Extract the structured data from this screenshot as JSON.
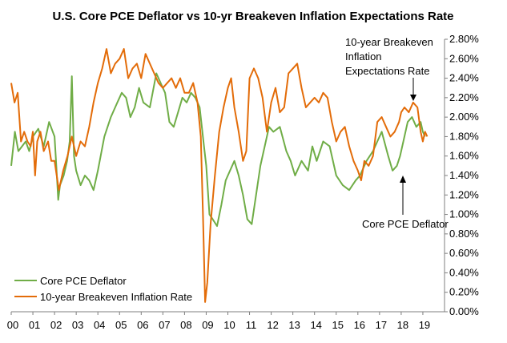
{
  "chart_data": {
    "type": "line",
    "title": "U.S. Core PCE Deflator vs 10-yr Breakeven Inflation Expectations Rate",
    "xlabel": "",
    "ylabel": "",
    "x_tick_labels": [
      "00",
      "01",
      "02",
      "03",
      "04",
      "05",
      "06",
      "07",
      "08",
      "09",
      "10",
      "11",
      "12",
      "13",
      "14",
      "15",
      "16",
      "17",
      "18",
      "19"
    ],
    "y_tick_labels": [
      "0.00%",
      "0.20%",
      "0.40%",
      "0.60%",
      "0.80%",
      "1.00%",
      "1.20%",
      "1.40%",
      "1.60%",
      "1.80%",
      "2.00%",
      "2.20%",
      "2.40%",
      "2.60%",
      "2.80%"
    ],
    "xlim": [
      2000.0,
      2020.0
    ],
    "ylim": [
      0,
      2.8
    ],
    "grid": false,
    "legend_position": "bottom-left",
    "series": [
      {
        "name": "Core PCE Deflator",
        "color": "#70AD47",
        "values": [
          [
            2000.0,
            1.5
          ],
          [
            2000.17,
            1.85
          ],
          [
            2000.33,
            1.65
          ],
          [
            2000.5,
            1.7
          ],
          [
            2000.67,
            1.75
          ],
          [
            2000.83,
            1.65
          ],
          [
            2001.0,
            1.8
          ],
          [
            2001.25,
            1.88
          ],
          [
            2001.5,
            1.7
          ],
          [
            2001.75,
            1.95
          ],
          [
            2002.0,
            1.8
          ],
          [
            2002.08,
            1.5
          ],
          [
            2002.17,
            1.15
          ],
          [
            2002.25,
            1.3
          ],
          [
            2002.42,
            1.4
          ],
          [
            2002.58,
            1.55
          ],
          [
            2002.7,
            1.75
          ],
          [
            2002.8,
            2.42
          ],
          [
            2002.9,
            1.6
          ],
          [
            2003.0,
            1.45
          ],
          [
            2003.2,
            1.3
          ],
          [
            2003.4,
            1.4
          ],
          [
            2003.6,
            1.35
          ],
          [
            2003.8,
            1.25
          ],
          [
            2004.0,
            1.45
          ],
          [
            2004.3,
            1.8
          ],
          [
            2004.6,
            2.0
          ],
          [
            2004.9,
            2.15
          ],
          [
            2005.1,
            2.25
          ],
          [
            2005.3,
            2.2
          ],
          [
            2005.5,
            2.0
          ],
          [
            2005.7,
            2.1
          ],
          [
            2005.9,
            2.3
          ],
          [
            2006.1,
            2.15
          ],
          [
            2006.4,
            2.1
          ],
          [
            2006.7,
            2.45
          ],
          [
            2006.9,
            2.35
          ],
          [
            2007.1,
            2.25
          ],
          [
            2007.3,
            1.95
          ],
          [
            2007.5,
            1.9
          ],
          [
            2007.7,
            2.05
          ],
          [
            2007.9,
            2.2
          ],
          [
            2008.1,
            2.15
          ],
          [
            2008.3,
            2.25
          ],
          [
            2008.5,
            2.2
          ],
          [
            2008.7,
            2.1
          ],
          [
            2008.9,
            1.7
          ],
          [
            2009.0,
            1.5
          ],
          [
            2009.15,
            1.0
          ],
          [
            2009.3,
            0.95
          ],
          [
            2009.5,
            0.88
          ],
          [
            2009.7,
            1.1
          ],
          [
            2009.9,
            1.35
          ],
          [
            2010.1,
            1.45
          ],
          [
            2010.3,
            1.55
          ],
          [
            2010.5,
            1.4
          ],
          [
            2010.7,
            1.2
          ],
          [
            2010.9,
            0.95
          ],
          [
            2011.1,
            0.9
          ],
          [
            2011.3,
            1.2
          ],
          [
            2011.5,
            1.5
          ],
          [
            2011.7,
            1.7
          ],
          [
            2011.9,
            1.9
          ],
          [
            2012.1,
            1.85
          ],
          [
            2012.4,
            1.9
          ],
          [
            2012.7,
            1.65
          ],
          [
            2012.9,
            1.55
          ],
          [
            2013.1,
            1.4
          ],
          [
            2013.4,
            1.55
          ],
          [
            2013.7,
            1.45
          ],
          [
            2013.9,
            1.7
          ],
          [
            2014.1,
            1.55
          ],
          [
            2014.4,
            1.75
          ],
          [
            2014.7,
            1.7
          ],
          [
            2015.0,
            1.4
          ],
          [
            2015.3,
            1.3
          ],
          [
            2015.6,
            1.25
          ],
          [
            2015.9,
            1.35
          ],
          [
            2016.1,
            1.4
          ],
          [
            2016.4,
            1.55
          ],
          [
            2016.7,
            1.65
          ],
          [
            2016.9,
            1.75
          ],
          [
            2017.1,
            1.85
          ],
          [
            2017.4,
            1.6
          ],
          [
            2017.6,
            1.45
          ],
          [
            2017.8,
            1.5
          ],
          [
            2017.95,
            1.6
          ],
          [
            2018.1,
            1.75
          ],
          [
            2018.3,
            1.95
          ],
          [
            2018.5,
            2.0
          ],
          [
            2018.7,
            1.9
          ],
          [
            2018.9,
            1.95
          ],
          [
            2019.0,
            1.85
          ],
          [
            2019.1,
            1.8
          ]
        ]
      },
      {
        "name": "10-year Breakeven Inflation Rate",
        "color": "#E36C09",
        "values": [
          [
            2000.0,
            2.35
          ],
          [
            2000.15,
            2.15
          ],
          [
            2000.3,
            2.25
          ],
          [
            2000.45,
            1.75
          ],
          [
            2000.6,
            1.85
          ],
          [
            2000.75,
            1.75
          ],
          [
            2000.9,
            1.7
          ],
          [
            2001.0,
            1.85
          ],
          [
            2001.1,
            1.4
          ],
          [
            2001.2,
            1.75
          ],
          [
            2001.35,
            1.85
          ],
          [
            2001.5,
            1.65
          ],
          [
            2001.7,
            1.75
          ],
          [
            2001.85,
            1.55
          ],
          [
            2002.0,
            1.55
          ],
          [
            2002.2,
            1.25
          ],
          [
            2002.4,
            1.45
          ],
          [
            2002.6,
            1.6
          ],
          [
            2002.8,
            1.8
          ],
          [
            2003.0,
            1.6
          ],
          [
            2003.2,
            1.75
          ],
          [
            2003.4,
            1.7
          ],
          [
            2003.6,
            1.9
          ],
          [
            2003.8,
            2.15
          ],
          [
            2004.0,
            2.35
          ],
          [
            2004.2,
            2.5
          ],
          [
            2004.4,
            2.7
          ],
          [
            2004.6,
            2.45
          ],
          [
            2004.8,
            2.55
          ],
          [
            2005.0,
            2.6
          ],
          [
            2005.2,
            2.7
          ],
          [
            2005.4,
            2.4
          ],
          [
            2005.6,
            2.5
          ],
          [
            2005.8,
            2.55
          ],
          [
            2006.0,
            2.4
          ],
          [
            2006.2,
            2.65
          ],
          [
            2006.4,
            2.55
          ],
          [
            2006.6,
            2.45
          ],
          [
            2006.8,
            2.35
          ],
          [
            2007.0,
            2.3
          ],
          [
            2007.2,
            2.35
          ],
          [
            2007.4,
            2.4
          ],
          [
            2007.6,
            2.3
          ],
          [
            2007.8,
            2.4
          ],
          [
            2008.0,
            2.25
          ],
          [
            2008.2,
            2.25
          ],
          [
            2008.4,
            2.35
          ],
          [
            2008.6,
            2.15
          ],
          [
            2008.75,
            1.8
          ],
          [
            2008.85,
            1.0
          ],
          [
            2008.95,
            0.1
          ],
          [
            2009.05,
            0.3
          ],
          [
            2009.2,
            0.9
          ],
          [
            2009.4,
            1.4
          ],
          [
            2009.6,
            1.85
          ],
          [
            2009.8,
            2.1
          ],
          [
            2010.0,
            2.3
          ],
          [
            2010.15,
            2.4
          ],
          [
            2010.3,
            2.1
          ],
          [
            2010.5,
            1.85
          ],
          [
            2010.7,
            1.55
          ],
          [
            2010.85,
            1.65
          ],
          [
            2011.0,
            2.4
          ],
          [
            2011.2,
            2.5
          ],
          [
            2011.4,
            2.4
          ],
          [
            2011.6,
            2.2
          ],
          [
            2011.8,
            1.85
          ],
          [
            2012.0,
            2.15
          ],
          [
            2012.2,
            2.3
          ],
          [
            2012.4,
            2.05
          ],
          [
            2012.6,
            2.1
          ],
          [
            2012.8,
            2.45
          ],
          [
            2013.0,
            2.5
          ],
          [
            2013.2,
            2.55
          ],
          [
            2013.4,
            2.3
          ],
          [
            2013.6,
            2.1
          ],
          [
            2013.8,
            2.15
          ],
          [
            2014.0,
            2.2
          ],
          [
            2014.2,
            2.15
          ],
          [
            2014.4,
            2.25
          ],
          [
            2014.6,
            2.2
          ],
          [
            2014.8,
            1.95
          ],
          [
            2015.0,
            1.75
          ],
          [
            2015.2,
            1.85
          ],
          [
            2015.4,
            1.9
          ],
          [
            2015.6,
            1.7
          ],
          [
            2015.8,
            1.55
          ],
          [
            2016.0,
            1.45
          ],
          [
            2016.15,
            1.35
          ],
          [
            2016.3,
            1.55
          ],
          [
            2016.5,
            1.5
          ],
          [
            2016.7,
            1.6
          ],
          [
            2016.9,
            1.95
          ],
          [
            2017.1,
            2.0
          ],
          [
            2017.3,
            1.9
          ],
          [
            2017.5,
            1.8
          ],
          [
            2017.7,
            1.85
          ],
          [
            2017.9,
            1.95
          ],
          [
            2018.0,
            2.05
          ],
          [
            2018.15,
            2.1
          ],
          [
            2018.35,
            2.05
          ],
          [
            2018.55,
            2.15
          ],
          [
            2018.75,
            2.1
          ],
          [
            2018.9,
            1.85
          ],
          [
            2019.0,
            1.75
          ],
          [
            2019.1,
            1.85
          ],
          [
            2019.2,
            1.8
          ]
        ]
      }
    ],
    "annotations": [
      {
        "lines": [
          "10-year Breakeven",
          "Inflation",
          "Expectations Rate"
        ]
      },
      {
        "lines": [
          "Core PCE Deflator"
        ]
      }
    ]
  }
}
